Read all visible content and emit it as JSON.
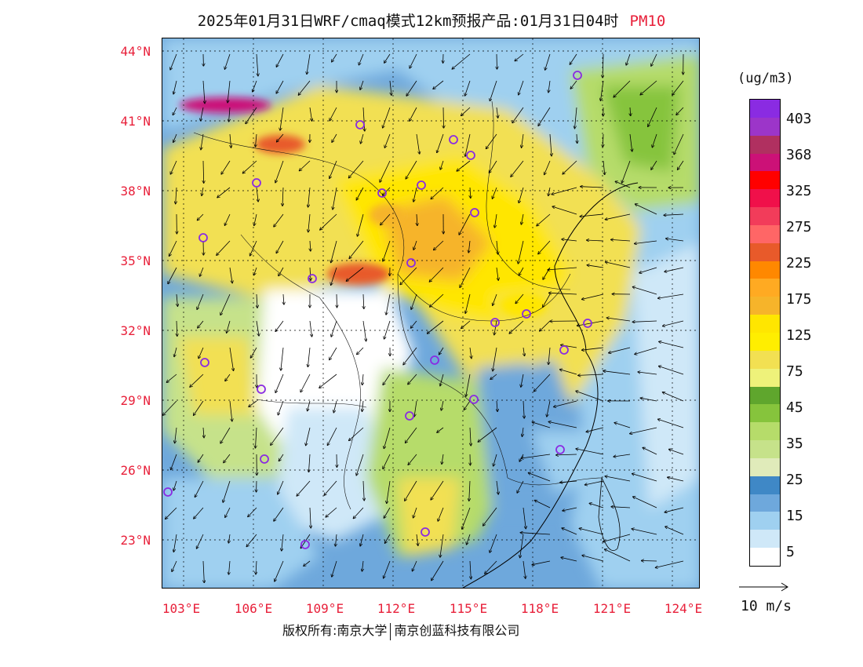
{
  "title": {
    "main": "2025年01月31日WRF/cmaq模式12km预报产品:01月31日04时",
    "product": "PM10"
  },
  "map": {
    "lat_labels": [
      "44°N",
      "41°N",
      "38°N",
      "35°N",
      "32°N",
      "29°N",
      "26°N",
      "23°N"
    ],
    "lon_labels": [
      "103°E",
      "106°E",
      "109°E",
      "112°E",
      "115°E",
      "118°E",
      "121°E",
      "124°E"
    ]
  },
  "legend": {
    "unit": "(ug/m3)",
    "tick_labels": [
      "403",
      "368",
      "325",
      "275",
      "225",
      "175",
      "125",
      "75",
      "45",
      "35",
      "25",
      "15",
      "5"
    ],
    "colors": [
      "#8a2be2",
      "#9c35c9",
      "#b03060",
      "#cc1177",
      "#ff0000",
      "#f0104a",
      "#f23c5a",
      "#ff6666",
      "#e85a2a",
      "#ff8800",
      "#ffaa22",
      "#f6b42a",
      "#ffe600",
      "#ffee00",
      "#f2e052",
      "#eef27a",
      "#5fa62d",
      "#86c43c",
      "#b6dc6a",
      "#c6e28a",
      "#e0ebba",
      "#3f88c6",
      "#6ea8dc",
      "#9fd0f0",
      "#cfe8f8",
      "#ffffff"
    ]
  },
  "wind_scale": {
    "label": "10 m/s"
  },
  "footer": {
    "copyright_left": "版权所有:南京大学",
    "copyright_right": "南京创蓝科技有限公司"
  }
}
